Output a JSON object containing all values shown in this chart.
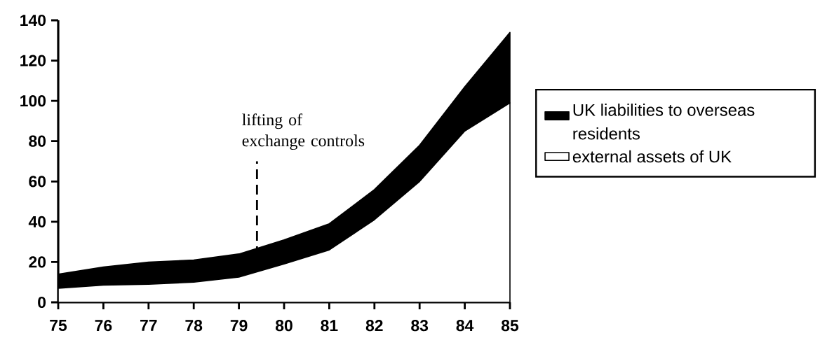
{
  "chart_data": {
    "type": "area",
    "stacked": true,
    "x": [
      75,
      76,
      77,
      78,
      79,
      80,
      81,
      82,
      83,
      84,
      85
    ],
    "xlim": [
      75,
      85
    ],
    "xticks": [
      75,
      76,
      77,
      78,
      79,
      80,
      81,
      82,
      83,
      84,
      85
    ],
    "ylim": [
      0,
      140
    ],
    "yticks": [
      0,
      20,
      40,
      60,
      80,
      100,
      120,
      140
    ],
    "legend": "right",
    "series": [
      {
        "name": "external assets of UK",
        "color": "#ffffff",
        "values": [
          7,
          8.5,
          9,
          10,
          12.5,
          19,
          26,
          41,
          60,
          85,
          99
        ]
      },
      {
        "name": "UK liabilities to overseas residents",
        "color": "#000000",
        "values": [
          7,
          9,
          11,
          11,
          11.5,
          12,
          13,
          15,
          18,
          22,
          35
        ]
      }
    ],
    "ref_lines": [
      {
        "axis": "x",
        "value": 79.4,
        "label": "lifting of exchange controls",
        "line_style": "dashed",
        "color": "#000000"
      }
    ]
  }
}
